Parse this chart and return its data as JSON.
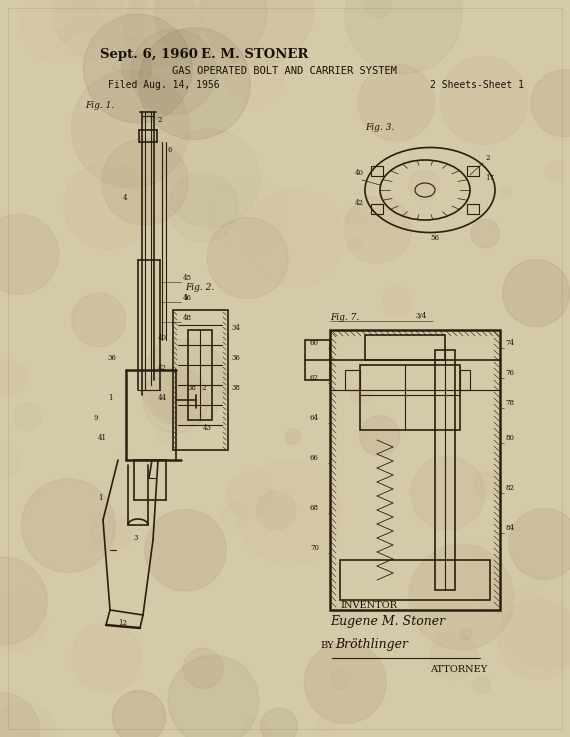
{
  "title_date": "Sept. 6, 1960",
  "title_inventor": "E. M. STONER",
  "title_patent": "GAS OPERATED BOLT AND CARRIER SYSTEM",
  "filed": "Filed Aug. 14, 1956",
  "sheets": "2 Sheets-Sheet 1",
  "inventor_label": "INVENTOR",
  "inventor_name": "Eugene M. Stoner",
  "by_label": "BY",
  "attorney_label": "ATTORNEY",
  "bg_color": "#d4c9a8",
  "bg_color2": "#c8bb98",
  "text_color": "#1a1008",
  "fig_color": "#2a1f0f",
  "paper_bg": "#ddd0b0"
}
